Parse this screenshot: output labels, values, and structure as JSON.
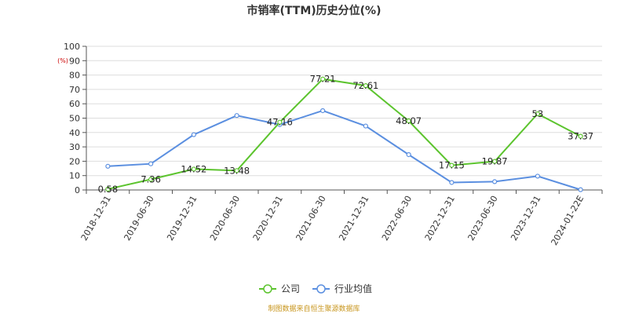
{
  "colors": {
    "company": "#5cc42e",
    "industry": "#5b8fe0",
    "grid": "#dddddd",
    "axis": "#555555",
    "source": "#c8961e"
  },
  "chart_data": {
    "type": "line",
    "title": "市销率(TTM)历史分位(%)",
    "unit_label": "(%)",
    "categories": [
      "2018-12-31",
      "2019-06-30",
      "2019-12-31",
      "2020-06-30",
      "2020-12-31",
      "2021-06-30",
      "2021-12-31",
      "2022-06-30",
      "2022-12-31",
      "2023-06-30",
      "2023-12-31",
      "2024-01-22E"
    ],
    "ylim": [
      0,
      100
    ],
    "yticks": [
      0,
      10,
      20,
      30,
      40,
      50,
      60,
      70,
      80,
      90,
      100
    ],
    "grid": true,
    "legend_position": "bottom-center",
    "series": [
      {
        "name": "公司",
        "color_key": "company",
        "values": [
          0.58,
          7.36,
          14.52,
          13.48,
          47.16,
          77.21,
          72.61,
          48.07,
          17.15,
          19.87,
          53,
          37.37
        ],
        "labels": [
          "0.58",
          "7.36",
          "14.52",
          "13.48",
          "47.16",
          "77.21",
          "72.61",
          "48.07",
          "17.15",
          "19.87",
          "53",
          "37.37"
        ]
      },
      {
        "name": "行业均值",
        "color_key": "industry",
        "values": [
          16.5,
          18.2,
          38.5,
          51.8,
          45.5,
          55.2,
          44.5,
          24.6,
          5.2,
          5.8,
          9.6,
          0.2
        ]
      }
    ]
  },
  "source_text": "制图数据来自恒生聚源数据库"
}
